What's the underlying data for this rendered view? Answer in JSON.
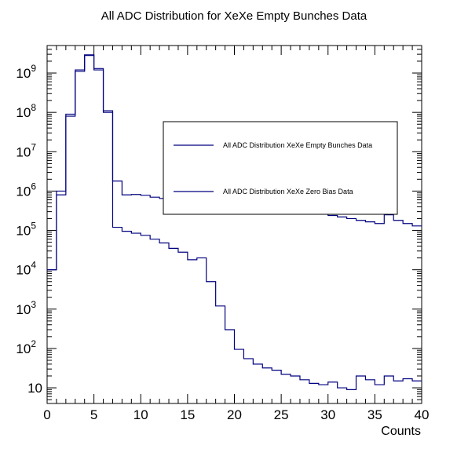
{
  "chart_data": {
    "type": "histogram-step",
    "title": "All ADC Distribution for XeXe Empty Bunches Data",
    "xlabel": "Counts",
    "ylabel": "",
    "xlim": [
      0,
      40
    ],
    "ylim": [
      4,
      5000000000
    ],
    "yscale": "log",
    "bin_width": 1,
    "x_ticks": [
      "0",
      "5",
      "10",
      "15",
      "20",
      "25",
      "30",
      "35",
      "40"
    ],
    "y_ticks": [
      {
        "value": 10,
        "label": "10",
        "exp": ""
      },
      {
        "value": 100,
        "label": "10",
        "exp": "2"
      },
      {
        "value": 1000,
        "label": "10",
        "exp": "3"
      },
      {
        "value": 10000,
        "label": "10",
        "exp": "4"
      },
      {
        "value": 100000,
        "label": "10",
        "exp": "5"
      },
      {
        "value": 1000000,
        "label": "10",
        "exp": "6"
      },
      {
        "value": 10000000,
        "label": "10",
        "exp": "7"
      },
      {
        "value": 100000000,
        "label": "10",
        "exp": "8"
      },
      {
        "value": 1000000000,
        "label": "10",
        "exp": "9"
      }
    ],
    "legend_position": "top-right",
    "grid": false,
    "series": [
      {
        "name": "All ADC Distribution XeXe Empty Bunches Data",
        "color": "#000080",
        "values": [
          10000,
          800000,
          80000000,
          1100000000,
          2800000000,
          1200000000,
          100000000,
          120000,
          95000,
          85000,
          75000,
          60000,
          48000,
          35000,
          28000,
          18000,
          20000,
          5000,
          1200,
          300,
          95,
          55,
          40,
          32,
          28,
          22,
          20,
          16,
          13,
          12,
          14,
          10,
          9,
          20,
          16,
          12,
          20,
          15,
          17,
          15
        ]
      },
      {
        "name": "All ADC Distribution XeXe Zero Bias Data",
        "color": "#000080",
        "values": [
          10000,
          1000000,
          90000000,
          1200000000,
          2900000000,
          1300000000,
          110000000,
          1800000,
          800000,
          820000,
          780000,
          700000,
          650000,
          600000,
          580000,
          550000,
          520000,
          500000,
          480000,
          460000,
          440000,
          420000,
          400000,
          380000,
          360000,
          340000,
          320000,
          300000,
          280000,
          260000,
          240000,
          220000,
          200000,
          180000,
          165000,
          150000,
          250000,
          180000,
          150000,
          130000
        ]
      }
    ]
  }
}
